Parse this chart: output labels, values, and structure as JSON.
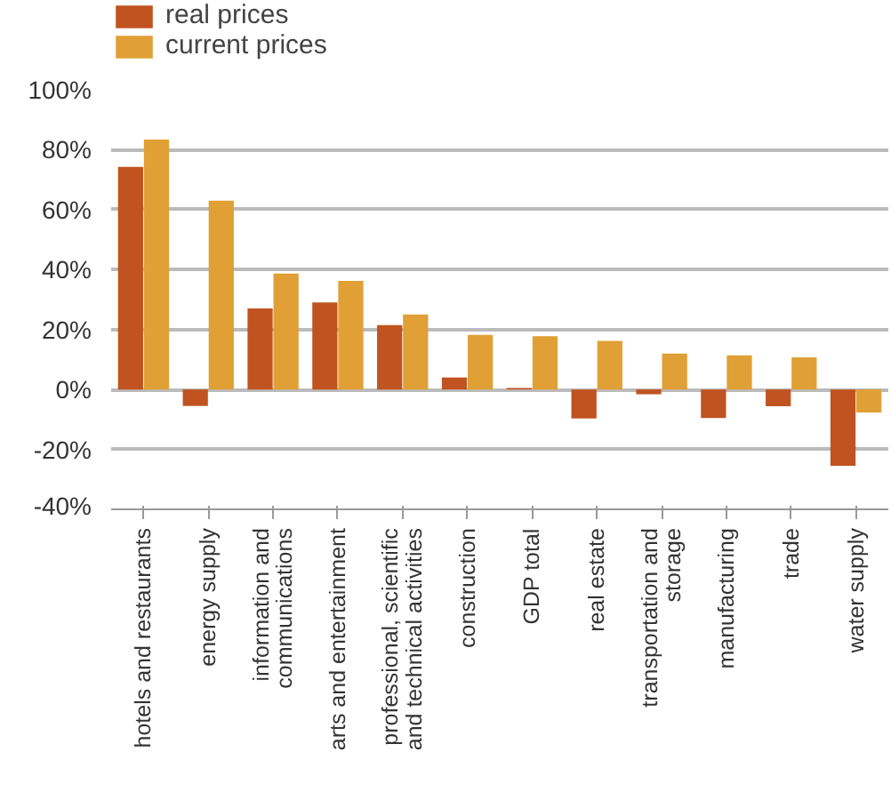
{
  "chart_data": {
    "type": "bar",
    "categories": [
      "hotels and restaurants",
      "energy supply",
      "information and communications",
      "arts and entertainment",
      "professional, scientific and technical activities",
      "construction",
      "GDP total",
      "real estate",
      "transportation and storage",
      "manufacturing",
      "trade",
      "water supply"
    ],
    "series": [
      {
        "name": "real prices",
        "color": "#c0531f",
        "values": [
          74.3,
          -5.5,
          27,
          29,
          21.5,
          4,
          0.5,
          -9.7,
          -1.6,
          -9.5,
          -5.6,
          -25.5
        ]
      },
      {
        "name": "current prices",
        "color": "#e0a035",
        "values": [
          83.4,
          63,
          38.7,
          36.2,
          25,
          18.2,
          17.8,
          16.2,
          12,
          11.4,
          10.7,
          -7.7
        ]
      }
    ],
    "ylim": [
      -40,
      100
    ],
    "yticks": [
      {
        "value": -40,
        "label": "-40%"
      },
      {
        "value": -20,
        "label": "-20%"
      },
      {
        "value": 0,
        "label": "0%"
      },
      {
        "value": 20,
        "label": "20%"
      },
      {
        "value": 40,
        "label": "40%"
      },
      {
        "value": 60,
        "label": "60%"
      },
      {
        "value": 80,
        "label": "80%"
      },
      {
        "value": 100,
        "label": "100%"
      }
    ],
    "grid": "y",
    "legend": "top left"
  }
}
